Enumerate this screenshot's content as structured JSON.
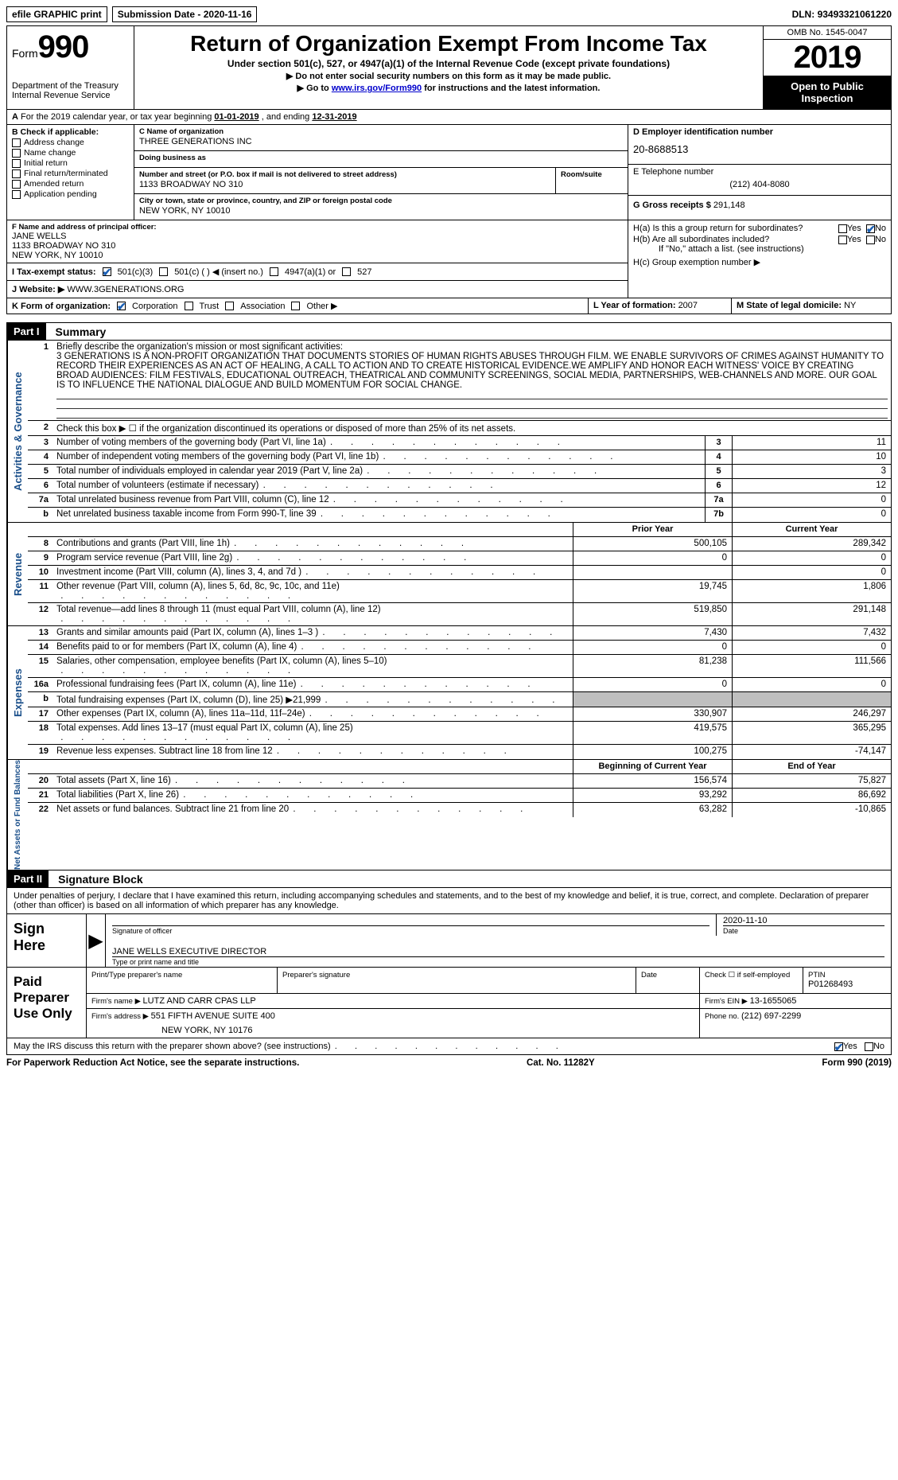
{
  "top": {
    "efile": "efile GRAPHIC print",
    "submission_label": "Submission Date - ",
    "submission_date": "2020-11-16",
    "dln_label": "DLN: ",
    "dln": "93493321061220"
  },
  "header": {
    "form_word": "Form",
    "form_no": "990",
    "dept": "Department of the Treasury Internal Revenue Service",
    "title": "Return of Organization Exempt From Income Tax",
    "sub": "Under section 501(c), 527, or 4947(a)(1) of the Internal Revenue Code (except private foundations)",
    "arrow1": "▶ Do not enter social security numbers on this form as it may be made public.",
    "arrow2_pre": "▶ Go to ",
    "arrow2_link": "www.irs.gov/Form990",
    "arrow2_post": " for instructions and the latest information.",
    "omb": "OMB No. 1545-0047",
    "year": "2019",
    "open": "Open to Public Inspection"
  },
  "line_a": {
    "pre": "For the 2019 calendar year, or tax year beginning ",
    "begin": "01-01-2019",
    "mid": "   , and ending ",
    "end": "12-31-2019"
  },
  "box_b": {
    "title": "B Check if applicable:",
    "addr": "Address change",
    "name": "Name change",
    "initial": "Initial return",
    "final": "Final return/terminated",
    "amended": "Amended return",
    "app": "Application pending"
  },
  "box_c": {
    "name_label": "C Name of organization",
    "name": "THREE GENERATIONS INC",
    "dba_label": "Doing business as",
    "dba": "",
    "street_label": "Number and street (or P.O. box if mail is not delivered to street address)",
    "street": "1133 BROADWAY NO 310",
    "room_label": "Room/suite",
    "room": "",
    "city_label": "City or town, state or province, country, and ZIP or foreign postal code",
    "city": "NEW YORK, NY   10010"
  },
  "box_d": {
    "label": "D Employer identification number",
    "val": "20-8688513"
  },
  "box_e": {
    "label": "E Telephone number",
    "val": "(212) 404-8080"
  },
  "box_g": {
    "label": "G Gross receipts $ ",
    "val": "291,148"
  },
  "box_f": {
    "label": "F  Name and address of principal officer:",
    "name": "JANE WELLS",
    "street": "1133 BROADWAY NO 310",
    "city": "NEW YORK, NY   10010"
  },
  "box_h": {
    "ha": "H(a)  Is this a group return for subordinates?",
    "hb": "H(b)  Are all subordinates included?",
    "hb_note": "If \"No,\" attach a list. (see instructions)",
    "hc": "H(c)  Group exemption number ▶",
    "yes": "Yes",
    "no": "No"
  },
  "box_i": {
    "label": "I   Tax-exempt status:",
    "c3": "501(c)(3)",
    "c": "501(c) (  ) ◀ (insert no.)",
    "a4947": "4947(a)(1) or",
    "s527": "527"
  },
  "box_j": {
    "label": "J   Website: ▶",
    "val": "WWW.3GENERATIONS.ORG"
  },
  "box_k": {
    "label": "K Form of organization:",
    "corp": "Corporation",
    "trust": "Trust",
    "assoc": "Association",
    "other": "Other ▶"
  },
  "box_l": {
    "label": "L Year of formation: ",
    "val": "2007"
  },
  "box_m": {
    "label": "M State of legal domicile: ",
    "val": "NY"
  },
  "parts": {
    "p1": "Part I",
    "p1_title": "Summary",
    "p2": "Part II",
    "p2_title": "Signature Block"
  },
  "vert": {
    "act": "Activities & Governance",
    "rev": "Revenue",
    "exp": "Expenses",
    "net": "Net Assets or Fund Balances"
  },
  "summary": {
    "l1": "Briefly describe the organization's mission or most significant activities:",
    "mission": "3 GENERATIONS IS A NON-PROFIT ORGANIZATION THAT DOCUMENTS STORIES OF HUMAN RIGHTS ABUSES THROUGH FILM. WE ENABLE SURVIVORS OF CRIMES AGAINST HUMANITY TO RECORD THEIR EXPERIENCES AS AN ACT OF HEALING, A CALL TO ACTION AND TO CREATE HISTORICAL EVIDENCE.WE AMPLIFY AND HONOR EACH WITNESS' VOICE BY CREATING BROAD AUDIENCES: FILM FESTIVALS, EDUCATIONAL OUTREACH, THEATRICAL AND COMMUNITY SCREENINGS, SOCIAL MEDIA, PARTNERSHIPS, WEB-CHANNELS AND MORE. OUR GOAL IS TO INFLUENCE THE NATIONAL DIALOGUE AND BUILD MOMENTUM FOR SOCIAL CHANGE.",
    "l2": "Check this box ▶ ☐  if the organization discontinued its operations or disposed of more than 25% of its net assets.",
    "rows_single": [
      {
        "n": "3",
        "label": "Number of voting members of the governing body (Part VI, line 1a)",
        "box": "3",
        "val": "11"
      },
      {
        "n": "4",
        "label": "Number of independent voting members of the governing body (Part VI, line 1b)",
        "box": "4",
        "val": "10"
      },
      {
        "n": "5",
        "label": "Total number of individuals employed in calendar year 2019 (Part V, line 2a)",
        "box": "5",
        "val": "3"
      },
      {
        "n": "6",
        "label": "Total number of volunteers (estimate if necessary)",
        "box": "6",
        "val": "12"
      },
      {
        "n": "7a",
        "label": "Total unrelated business revenue from Part VIII, column (C), line 12",
        "box": "7a",
        "val": "0"
      },
      {
        "n": "b",
        "label": "Net unrelated business taxable income from Form 990-T, line 39",
        "box": "7b",
        "val": "0"
      }
    ],
    "col_prior": "Prior Year",
    "col_current": "Current Year",
    "rows_rev": [
      {
        "n": "8",
        "label": "Contributions and grants (Part VIII, line 1h)",
        "py": "500,105",
        "cy": "289,342"
      },
      {
        "n": "9",
        "label": "Program service revenue (Part VIII, line 2g)",
        "py": "0",
        "cy": "0"
      },
      {
        "n": "10",
        "label": "Investment income (Part VIII, column (A), lines 3, 4, and 7d )",
        "py": "",
        "cy": "0"
      },
      {
        "n": "11",
        "label": "Other revenue (Part VIII, column (A), lines 5, 6d, 8c, 9c, 10c, and 11e)",
        "py": "19,745",
        "cy": "1,806"
      },
      {
        "n": "12",
        "label": "Total revenue—add lines 8 through 11 (must equal Part VIII, column (A), line 12)",
        "py": "519,850",
        "cy": "291,148"
      }
    ],
    "rows_exp": [
      {
        "n": "13",
        "label": "Grants and similar amounts paid (Part IX, column (A), lines 1–3 )",
        "py": "7,430",
        "cy": "7,432"
      },
      {
        "n": "14",
        "label": "Benefits paid to or for members (Part IX, column (A), line 4)",
        "py": "0",
        "cy": "0"
      },
      {
        "n": "15",
        "label": "Salaries, other compensation, employee benefits (Part IX, column (A), lines 5–10)",
        "py": "81,238",
        "cy": "111,566"
      },
      {
        "n": "16a",
        "label": "Professional fundraising fees (Part IX, column (A), line 11e)",
        "py": "0",
        "cy": "0"
      },
      {
        "n": "b",
        "label": "Total fundraising expenses (Part IX, column (D), line 25) ▶21,999",
        "py": "SHADE",
        "cy": "SHADE"
      },
      {
        "n": "17",
        "label": "Other expenses (Part IX, column (A), lines 11a–11d, 11f–24e)",
        "py": "330,907",
        "cy": "246,297"
      },
      {
        "n": "18",
        "label": "Total expenses. Add lines 13–17 (must equal Part IX, column (A), line 25)",
        "py": "419,575",
        "cy": "365,295"
      },
      {
        "n": "19",
        "label": "Revenue less expenses. Subtract line 18 from line 12",
        "py": "100,275",
        "cy": "-74,147"
      }
    ],
    "col_boy": "Beginning of Current Year",
    "col_eoy": "End of Year",
    "rows_net": [
      {
        "n": "20",
        "label": "Total assets (Part X, line 16)",
        "py": "156,574",
        "cy": "75,827"
      },
      {
        "n": "21",
        "label": "Total liabilities (Part X, line 26)",
        "py": "93,292",
        "cy": "86,692"
      },
      {
        "n": "22",
        "label": "Net assets or fund balances. Subtract line 21 from line 20",
        "py": "63,282",
        "cy": "-10,865"
      }
    ]
  },
  "sig": {
    "declaration": "Under penalties of perjury, I declare that I have examined this return, including accompanying schedules and statements, and to the best of my knowledge and belief, it is true, correct, and complete. Declaration of preparer (other than officer) is based on all information of which preparer has any knowledge.",
    "sign_here": "Sign Here",
    "sig_officer": "Signature of officer",
    "date_label": "Date",
    "date_val": "2020-11-10",
    "name_title": "JANE WELLS  EXECUTIVE DIRECTOR",
    "name_caption": "Type or print name and title",
    "paid": "Paid Preparer Use Only",
    "prep_name_label": "Print/Type preparer's name",
    "prep_sig_label": "Preparer's signature",
    "check_self": "Check ☐  if self-employed",
    "ptin_label": "PTIN",
    "ptin": "P01268493",
    "firm_name_label": "Firm's name      ▶ ",
    "firm_name": "LUTZ AND CARR CPAS LLP",
    "firm_ein_label": "Firm's EIN ▶ ",
    "firm_ein": "13-1655065",
    "firm_addr_label": "Firm's address ▶ ",
    "firm_addr": "551 FIFTH AVENUE SUITE 400",
    "firm_city": "NEW YORK, NY   10176",
    "phone_label": "Phone no. ",
    "phone": "(212) 697-2299",
    "discuss": "May the IRS discuss this return with the preparer shown above? (see instructions)",
    "yes": "Yes",
    "no": "No"
  },
  "footer": {
    "left": "For Paperwork Reduction Act Notice, see the separate instructions.",
    "mid": "Cat. No. 11282Y",
    "right_pre": "Form ",
    "right_form": "990",
    "right_post": " (2019)"
  }
}
